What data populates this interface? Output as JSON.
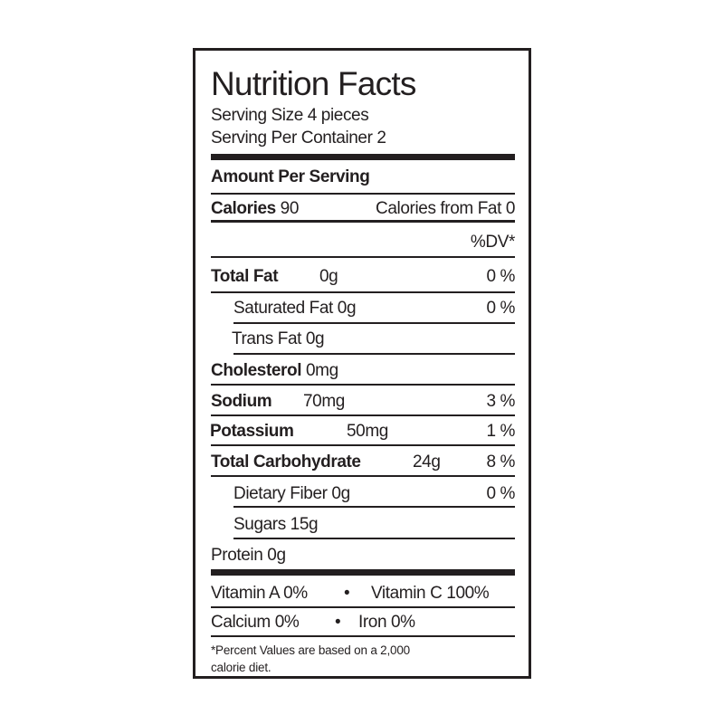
{
  "title": "Nutrition Facts",
  "serving_size": "Serving Size 4 pieces",
  "servings_per_container": "Serving Per Container 2",
  "amount_per_serving": "Amount Per Serving",
  "calories": {
    "label": "Calories",
    "value": "90",
    "from_fat": "Calories from Fat 0"
  },
  "dv_header": "%DV*",
  "nutrients": [
    {
      "label": "Total Fat",
      "value": "0g",
      "dv": "0 %"
    },
    {
      "label": "Saturated Fat 0g",
      "dv": "0 %"
    },
    {
      "label": "Trans Fat 0g"
    },
    {
      "label": "Cholesterol",
      "value": "0mg"
    },
    {
      "label": "Sodium",
      "value": "70mg",
      "dv": "3 %"
    },
    {
      "label": "Potassium",
      "value": "50mg",
      "dv": "1 %"
    },
    {
      "label": "Total Carbohydrate",
      "value": "24g",
      "dv": "8 %"
    },
    {
      "label": "Dietary Fiber 0g",
      "dv": "0 %"
    },
    {
      "label": "Sugars 15g"
    },
    {
      "label": "Protein 0g"
    }
  ],
  "vitamins": {
    "vitamin_a": "Vitamin A 0%",
    "vitamin_c": "Vitamin C 100%",
    "calcium": "Calcium 0%",
    "iron": "Iron 0%",
    "bullet": "•"
  },
  "footnote_line1": "*Percent Values are based on a 2,000",
  "footnote_line2": "calorie diet."
}
